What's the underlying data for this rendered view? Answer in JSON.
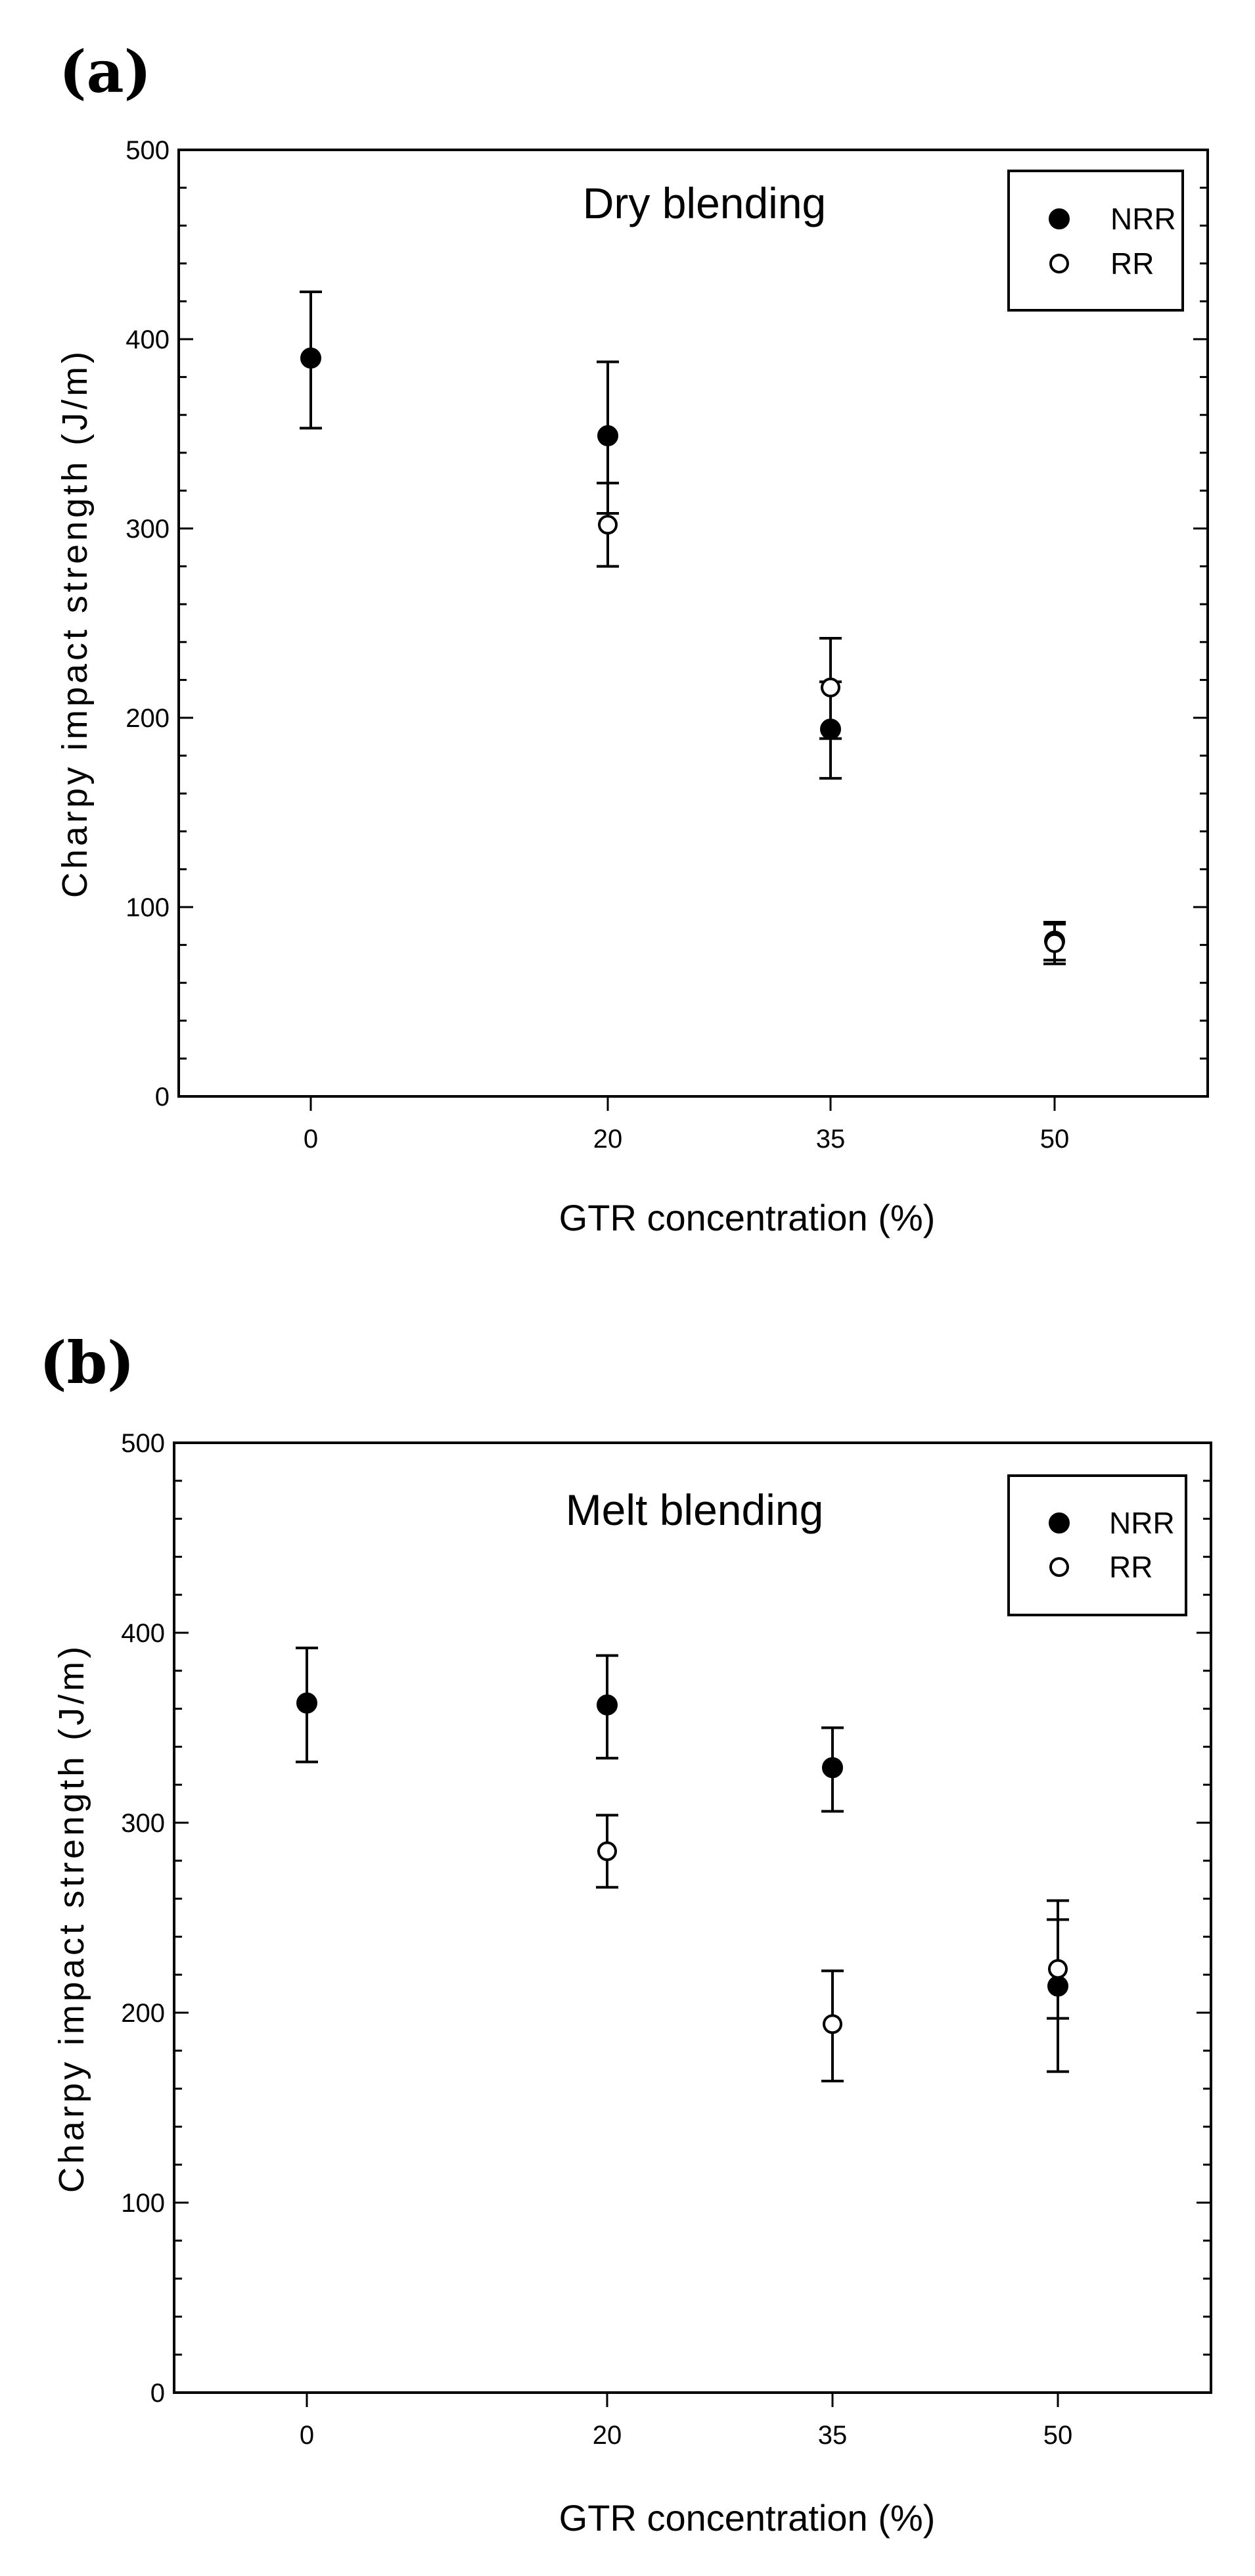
{
  "chart_data": [
    {
      "panel": "(a)",
      "type": "scatter",
      "title": "Dry blending",
      "xlabel": "GTR concentration (%)",
      "ylabel": "Charpy impact strength (J/m)",
      "categories": [
        "0",
        "20",
        "35",
        "50"
      ],
      "x": [
        0,
        20,
        35,
        50
      ],
      "ylim": [
        0,
        500
      ],
      "yticks": [
        0,
        100,
        200,
        300,
        400,
        500
      ],
      "legend_position": "top-right",
      "series": [
        {
          "name": "NRR",
          "marker": "filled-circle",
          "points": [
            {
              "x": 0,
              "y": 390,
              "err_low": 353,
              "err_high": 425
            },
            {
              "x": 20,
              "y": 349,
              "err_low": 308,
              "err_high": 388
            },
            {
              "x": 35,
              "y": 194,
              "err_low": 168,
              "err_high": 219
            },
            {
              "x": 50,
              "y": 82,
              "err_low": 70,
              "err_high": 92
            }
          ]
        },
        {
          "name": "RR",
          "marker": "open-circle",
          "points": [
            {
              "x": 20,
              "y": 302,
              "err_low": 280,
              "err_high": 324
            },
            {
              "x": 35,
              "y": 216,
              "err_low": 189,
              "err_high": 242
            },
            {
              "x": 50,
              "y": 81,
              "err_low": 72,
              "err_high": 91
            }
          ]
        }
      ]
    },
    {
      "panel": "(b)",
      "type": "scatter",
      "title": "Melt blending",
      "xlabel": "GTR concentration (%)",
      "ylabel": "Charpy impact strength (J/m)",
      "categories": [
        "0",
        "20",
        "35",
        "50"
      ],
      "x": [
        0,
        20,
        35,
        50
      ],
      "ylim": [
        0,
        500
      ],
      "yticks": [
        0,
        100,
        200,
        300,
        400,
        500
      ],
      "legend_position": "top-right",
      "series": [
        {
          "name": "NRR",
          "marker": "filled-circle",
          "points": [
            {
              "x": 0,
              "y": 363,
              "err_low": 332,
              "err_high": 392
            },
            {
              "x": 20,
              "y": 362,
              "err_low": 334,
              "err_high": 388
            },
            {
              "x": 35,
              "y": 329,
              "err_low": 306,
              "err_high": 350
            },
            {
              "x": 50,
              "y": 214,
              "err_low": 169,
              "err_high": 259
            }
          ]
        },
        {
          "name": "RR",
          "marker": "open-circle",
          "points": [
            {
              "x": 20,
              "y": 285,
              "err_low": 266,
              "err_high": 304
            },
            {
              "x": 35,
              "y": 194,
              "err_low": 164,
              "err_high": 222
            },
            {
              "x": 50,
              "y": 223,
              "err_low": 197,
              "err_high": 249
            }
          ]
        }
      ]
    }
  ]
}
